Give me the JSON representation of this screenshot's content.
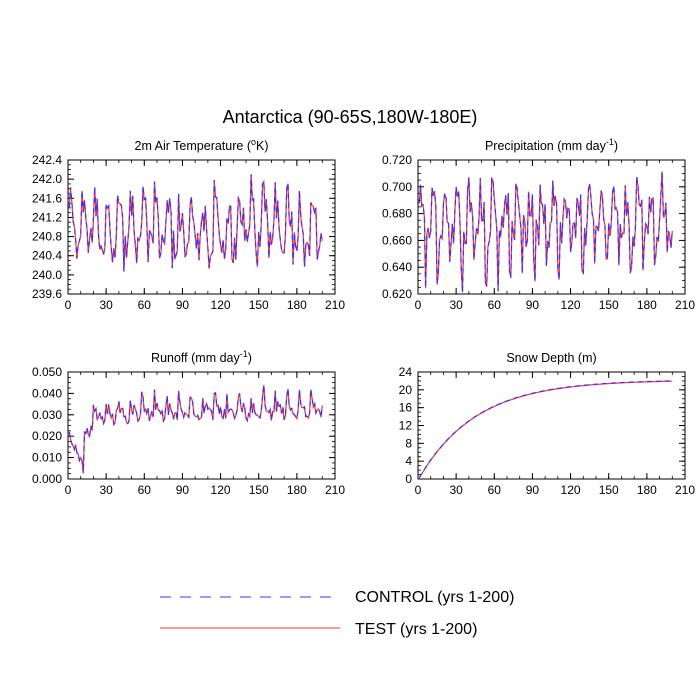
{
  "figure": {
    "title": "Antarctica (90-65S,180W-180E)"
  },
  "legend": {
    "items": [
      {
        "label": "CONTROL (yrs 1-200)",
        "color": "#3333ff",
        "style": "dashed"
      },
      {
        "label": "TEST (yrs 1-200)",
        "color": "#ff3333",
        "style": "solid"
      }
    ]
  },
  "colors": {
    "control": "#3333ff",
    "test": "#ff3333",
    "axis": "#000000"
  },
  "chart_data": [
    {
      "type": "line",
      "title_main": "2m Air Temperature (",
      "title_sup": "o",
      "title_after": "K)",
      "xlim": [
        0,
        210
      ],
      "ylim": [
        239.6,
        242.4
      ],
      "xticks": [
        "0",
        "30",
        "60",
        "90",
        "120",
        "150",
        "180",
        "210"
      ],
      "yticks": [
        "239.6",
        "240.0",
        "240.4",
        "240.8",
        "241.2",
        "241.6",
        "242.0",
        "242.4"
      ],
      "series_generator": {
        "kind": "oscillating",
        "n": 200,
        "baseline": 240.95,
        "amp": 0.55,
        "period": 9.5,
        "spike": 0.75,
        "dip": 0.55,
        "start": 241.4
      },
      "series_names": [
        "CONTROL (yrs 1-200)",
        "TEST (yrs 1-200)"
      ]
    },
    {
      "type": "line",
      "title_main": "Precipitation (mm day",
      "title_sup": "-1",
      "title_after": ")",
      "xlim": [
        0,
        210
      ],
      "ylim": [
        0.62,
        0.72
      ],
      "xticks": [
        "0",
        "30",
        "60",
        "90",
        "120",
        "150",
        "180",
        "210"
      ],
      "yticks": [
        "0.620",
        "0.640",
        "0.660",
        "0.680",
        "0.700",
        "0.720"
      ],
      "series_generator": {
        "kind": "oscillating",
        "n": 200,
        "baseline": 0.675,
        "amp": 0.018,
        "period": 9.5,
        "spike": 0.025,
        "dip": 0.045,
        "start": 0.688
      },
      "series_names": [
        "CONTROL (yrs 1-200)",
        "TEST (yrs 1-200)"
      ]
    },
    {
      "type": "line",
      "title_main": "Runoff (mm day",
      "title_sup": "-1",
      "title_after": ")",
      "xlim": [
        0,
        210
      ],
      "ylim": [
        0.0,
        0.05
      ],
      "xticks": [
        "0",
        "30",
        "60",
        "90",
        "120",
        "150",
        "180",
        "210"
      ],
      "yticks": [
        "0.000",
        "0.010",
        "0.020",
        "0.030",
        "0.040",
        "0.050"
      ],
      "series_generator": {
        "kind": "runoff",
        "n": 200,
        "start": 0.022,
        "low": 0.005,
        "plateau": 0.03,
        "trend_end": 0.033,
        "amp": 0.004,
        "spike": 0.009
      },
      "series_names": [
        "CONTROL (yrs 1-200)",
        "TEST (yrs 1-200)"
      ]
    },
    {
      "type": "line",
      "title_main": "Snow Depth (m)",
      "title_sup": "",
      "title_after": "",
      "xlim": [
        0,
        210
      ],
      "ylim": [
        0,
        24
      ],
      "xticks": [
        "0",
        "30",
        "60",
        "90",
        "120",
        "150",
        "180",
        "210"
      ],
      "yticks": [
        "0",
        "4",
        "8",
        "12",
        "16",
        "20",
        "24"
      ],
      "series_generator": {
        "kind": "saturating",
        "n": 200,
        "start": 0.3,
        "end": 22.0,
        "tau": 45
      },
      "series_names": [
        "CONTROL (yrs 1-200)",
        "TEST (yrs 1-200)"
      ]
    }
  ]
}
